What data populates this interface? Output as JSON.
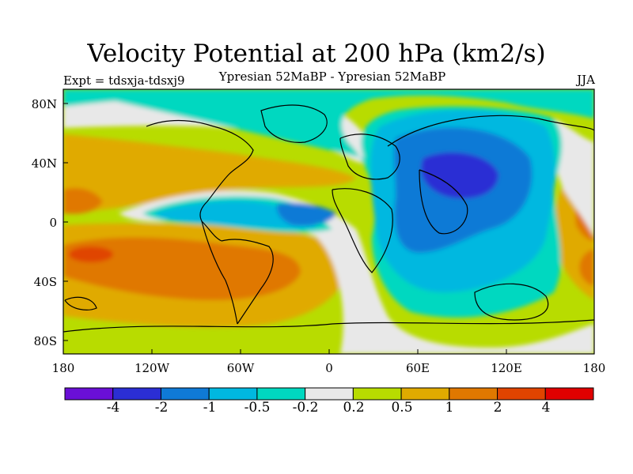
{
  "title": "Velocity Potential at 200 hPa (km2/s)",
  "subtitle": "Ypresian  52MaBP - Ypresian  52MaBP",
  "expt_label": "Expt = tdsxja-tdsxj9",
  "season": "JJA",
  "lat_labels": [
    "80N",
    "40N",
    "0",
    "40S",
    "80S"
  ],
  "lon_labels": [
    "180",
    "120W",
    "60W",
    "0",
    "60E",
    "120E",
    "180"
  ],
  "colorbar": {
    "labels": [
      "-4",
      "-2",
      "-1",
      "-0.5",
      "-0.2",
      "0.2",
      "0.5",
      "1",
      "2",
      "4"
    ],
    "colors": [
      "#6a0fd6",
      "#2b2ed4",
      "#0f7ad6",
      "#00b8e0",
      "#00d8c0",
      "#e8e8e8",
      "#b8dc00",
      "#e0aa00",
      "#e07800",
      "#e04400",
      "#e00000"
    ]
  }
}
